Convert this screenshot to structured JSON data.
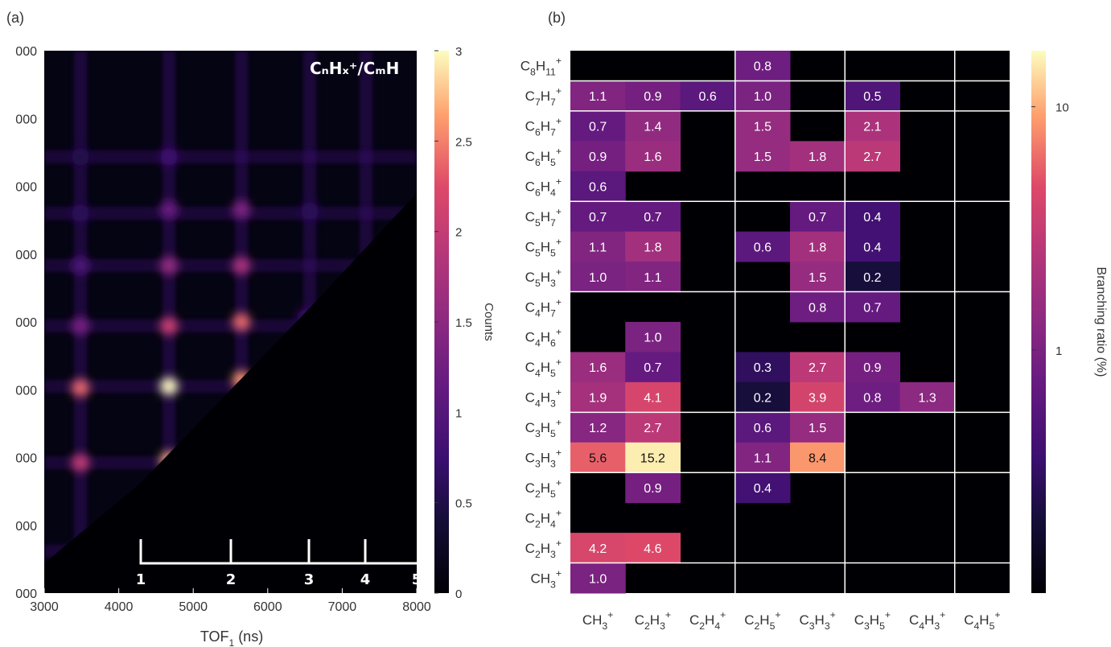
{
  "chart_data": [
    {
      "type": "heatmap",
      "panel_label": "(a)",
      "xlabel": "TOF",
      "xlabel_sub": "1",
      "xlabel_unit": "(ns)",
      "x_ticks": [
        "3000",
        "4000",
        "5000",
        "6000",
        "7000",
        "8000"
      ],
      "y_ticks": [
        "000",
        "000",
        "000",
        "000",
        "000",
        "000",
        "000",
        "000",
        "000"
      ],
      "xlim": [
        3000,
        8000
      ],
      "colorbar": {
        "label": "Counts",
        "range": [
          0,
          3
        ],
        "ticks": [
          "0",
          "0.5",
          "1",
          "1.5",
          "2",
          "2.5",
          "3"
        ]
      },
      "annotation": "CₙHₓ⁺/CₘH",
      "bracket_labels": [
        "1",
        "2",
        "3",
        "4",
        "5"
      ],
      "right_bracket_label": "m",
      "bottom_bracket_suffix": "n",
      "colormap": "magma"
    },
    {
      "type": "heatmap",
      "panel_label": "(b)",
      "colormap": "magma",
      "scale": "log",
      "colorbar": {
        "label": "Branching ratio (%)",
        "ticks": [
          "1",
          "10"
        ]
      },
      "x_categories": [
        "CH3+",
        "C2H3+",
        "C2H4+",
        "C2H5+",
        "C3H3+",
        "C3H5+",
        "C4H3+",
        "C4H5+"
      ],
      "y_categories": [
        "C8H11+",
        "C7H7+",
        "C6H7+",
        "C6H5+",
        "C6H4+",
        "C5H7+",
        "C5H5+",
        "C5H3+",
        "C4H7+",
        "C4H6+",
        "C4H5+",
        "C4H3+",
        "C3H5+",
        "C3H3+",
        "C2H5+",
        "C2H4+",
        "C2H3+",
        "CH3+"
      ],
      "cells": [
        [
          "C8H11+",
          "C2H5+",
          "0.8"
        ],
        [
          "C7H7+",
          "CH3+",
          "1.1"
        ],
        [
          "C7H7+",
          "C2H3+",
          "0.9"
        ],
        [
          "C7H7+",
          "C2H4+",
          "0.6"
        ],
        [
          "C7H7+",
          "C2H5+",
          "1.0"
        ],
        [
          "C7H7+",
          "C3H5+",
          "0.5"
        ],
        [
          "C6H7+",
          "CH3+",
          "0.7"
        ],
        [
          "C6H7+",
          "C2H3+",
          "1.4"
        ],
        [
          "C6H7+",
          "C2H5+",
          "1.5"
        ],
        [
          "C6H7+",
          "C3H5+",
          "2.1"
        ],
        [
          "C6H5+",
          "CH3+",
          "0.9"
        ],
        [
          "C6H5+",
          "C2H3+",
          "1.6"
        ],
        [
          "C6H5+",
          "C2H5+",
          "1.5"
        ],
        [
          "C6H5+",
          "C3H3+",
          "1.8"
        ],
        [
          "C6H5+",
          "C3H5+",
          "2.7"
        ],
        [
          "C6H4+",
          "CH3+",
          "0.6"
        ],
        [
          "C5H7+",
          "CH3+",
          "0.7"
        ],
        [
          "C5H7+",
          "C2H3+",
          "0.7"
        ],
        [
          "C5H7+",
          "C3H3+",
          "0.7"
        ],
        [
          "C5H7+",
          "C3H5+",
          "0.4"
        ],
        [
          "C5H5+",
          "CH3+",
          "1.1"
        ],
        [
          "C5H5+",
          "C2H3+",
          "1.8"
        ],
        [
          "C5H5+",
          "C2H5+",
          "0.6"
        ],
        [
          "C5H5+",
          "C3H3+",
          "1.8"
        ],
        [
          "C5H5+",
          "C3H5+",
          "0.4"
        ],
        [
          "C5H3+",
          "CH3+",
          "1.0"
        ],
        [
          "C5H3+",
          "C2H3+",
          "1.1"
        ],
        [
          "C5H3+",
          "C3H3+",
          "1.5"
        ],
        [
          "C5H3+",
          "C3H5+",
          "0.2"
        ],
        [
          "C4H7+",
          "C3H3+",
          "0.8"
        ],
        [
          "C4H7+",
          "C3H5+",
          "0.7"
        ],
        [
          "C4H6+",
          "C2H3+",
          "1.0"
        ],
        [
          "C4H5+",
          "CH3+",
          "1.6"
        ],
        [
          "C4H5+",
          "C2H3+",
          "0.7"
        ],
        [
          "C4H5+",
          "C2H5+",
          "0.3"
        ],
        [
          "C4H5+",
          "C3H3+",
          "2.7"
        ],
        [
          "C4H5+",
          "C3H5+",
          "0.9"
        ],
        [
          "C4H3+",
          "CH3+",
          "1.9"
        ],
        [
          "C4H3+",
          "C2H3+",
          "4.1"
        ],
        [
          "C4H3+",
          "C2H5+",
          "0.2"
        ],
        [
          "C4H3+",
          "C3H3+",
          "3.9"
        ],
        [
          "C4H3+",
          "C3H5+",
          "0.8"
        ],
        [
          "C4H3+",
          "C4H3+",
          "1.3"
        ],
        [
          "C3H5+",
          "CH3+",
          "1.2"
        ],
        [
          "C3H5+",
          "C2H3+",
          "2.7"
        ],
        [
          "C3H5+",
          "C2H5+",
          "0.6"
        ],
        [
          "C3H5+",
          "C3H3+",
          "1.5"
        ],
        [
          "C3H3+",
          "CH3+",
          "5.6"
        ],
        [
          "C3H3+",
          "C2H3+",
          "15.2"
        ],
        [
          "C3H3+",
          "C2H5+",
          "1.1"
        ],
        [
          "C3H3+",
          "C3H3+",
          "8.4"
        ],
        [
          "C2H5+",
          "C2H3+",
          "0.9"
        ],
        [
          "C2H5+",
          "C2H5+",
          "0.4"
        ],
        [
          "C2H3+",
          "CH3+",
          "4.2"
        ],
        [
          "C2H3+",
          "C2H3+",
          "4.6"
        ],
        [
          "CH3+",
          "CH3+",
          "1.0"
        ]
      ]
    }
  ]
}
